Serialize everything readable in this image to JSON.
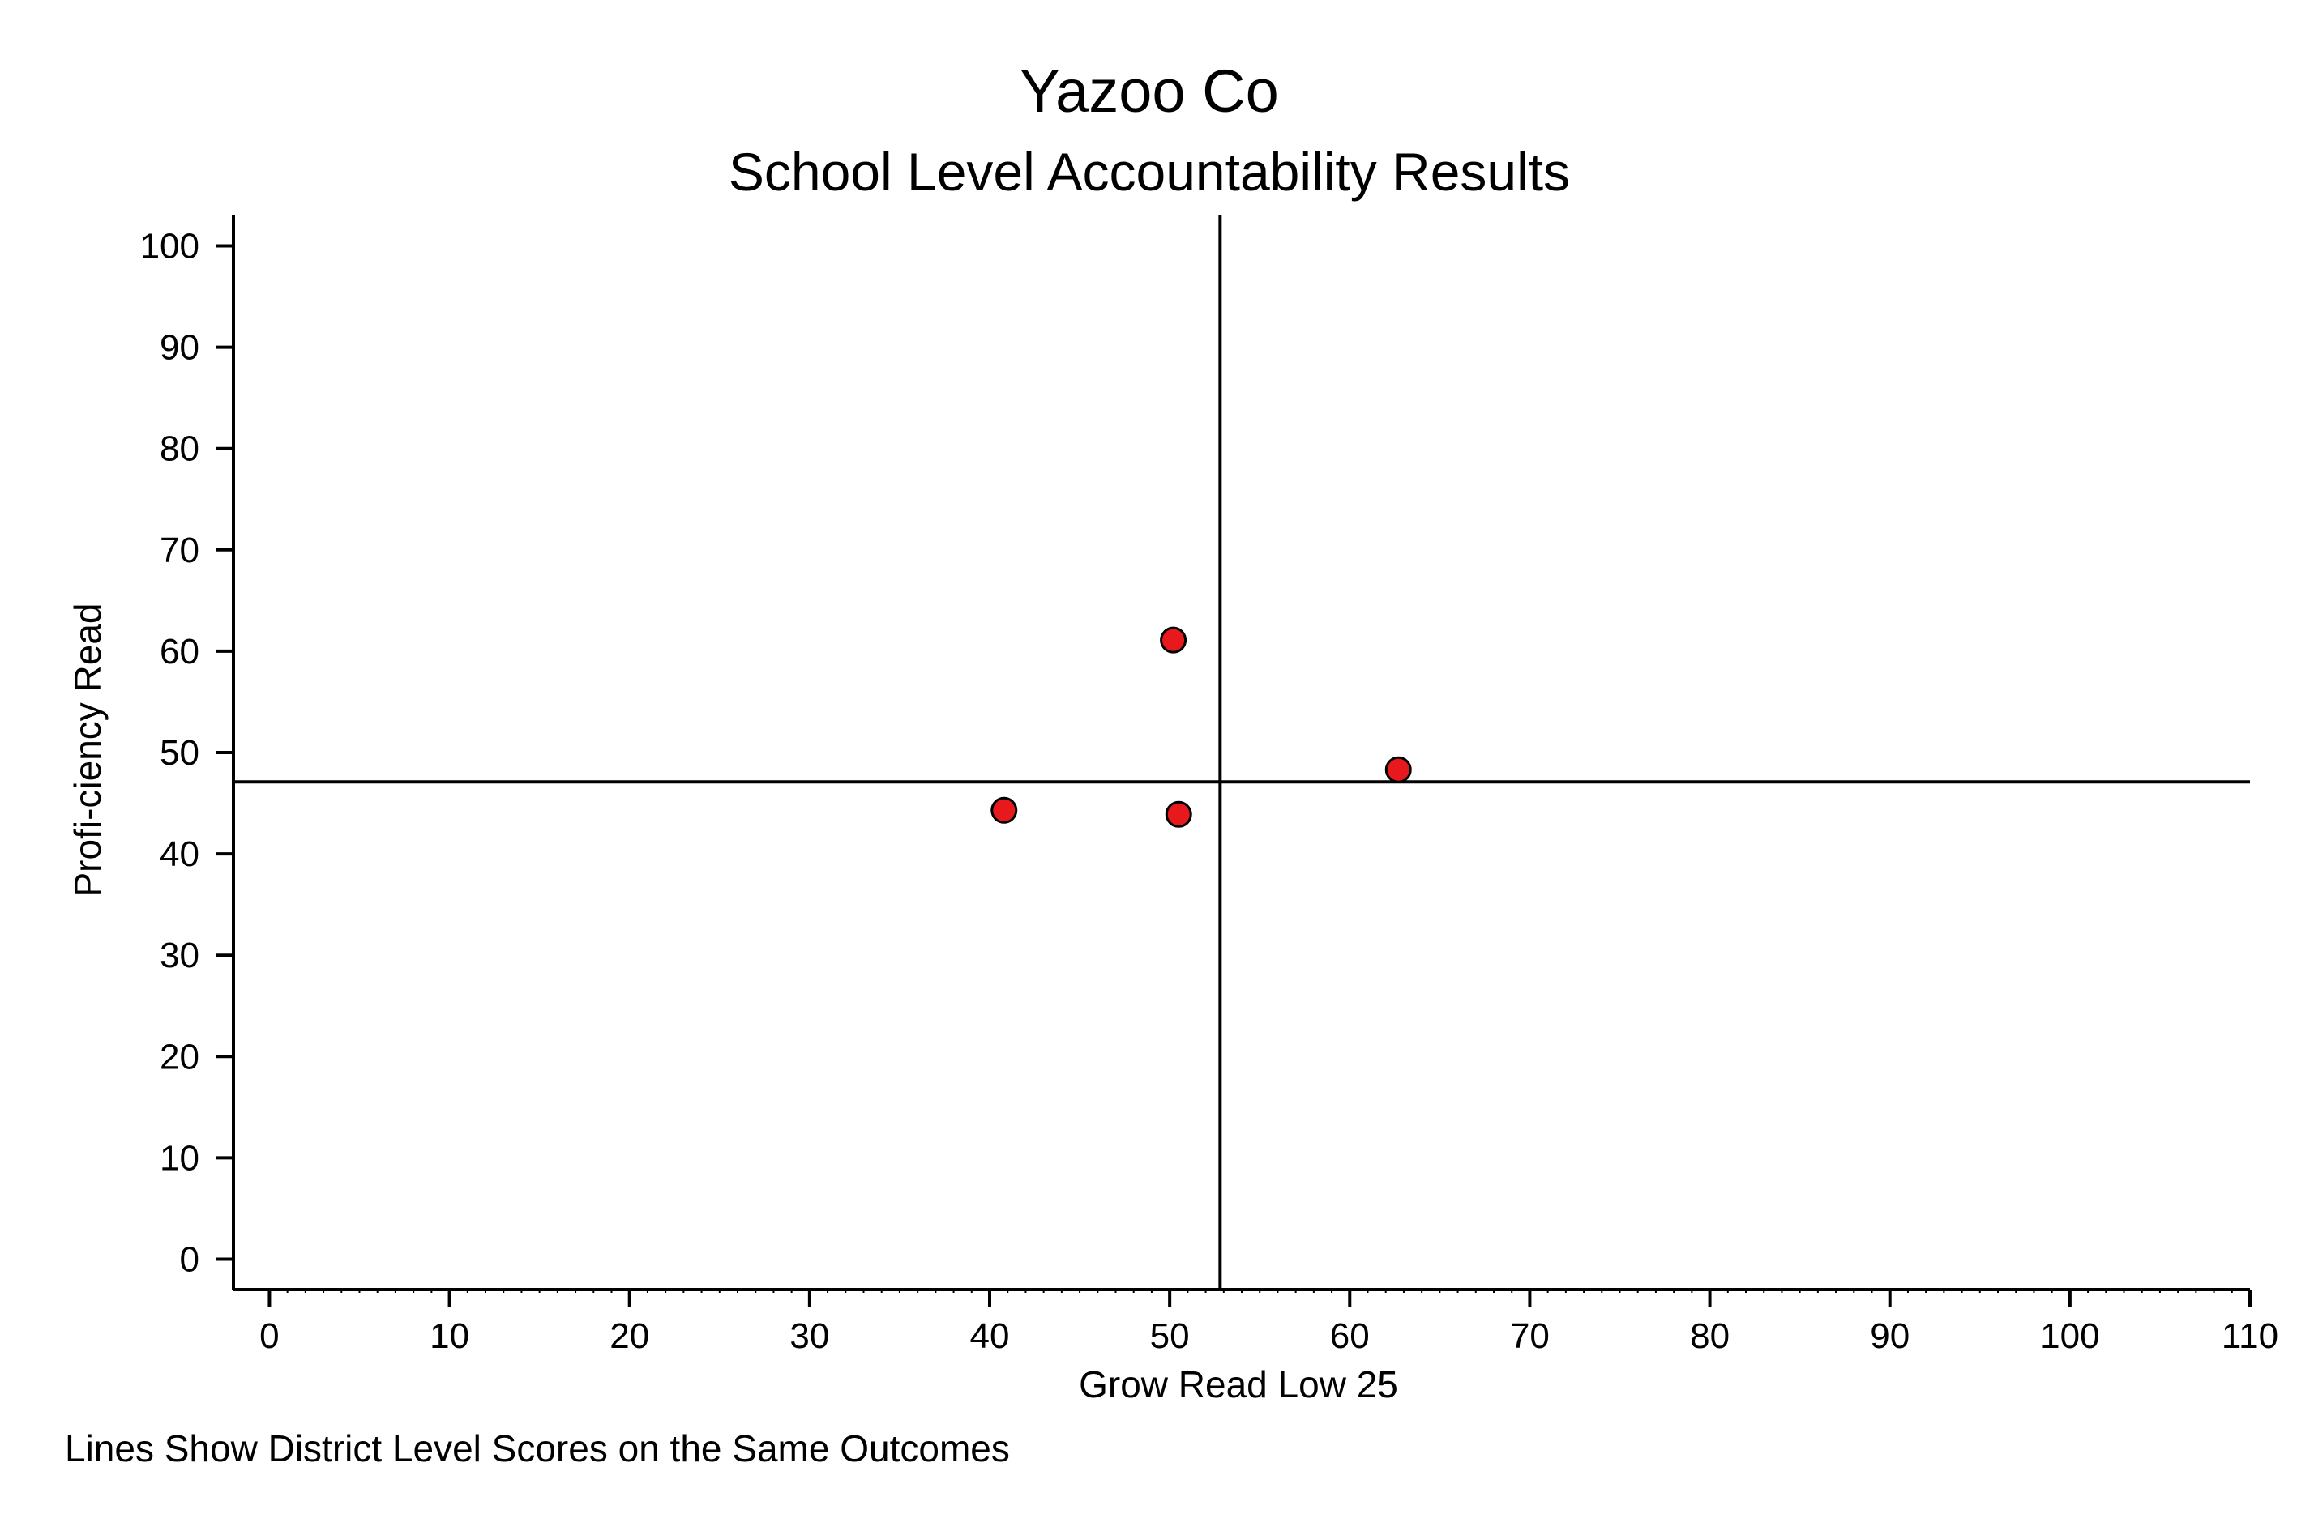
{
  "chart_data": {
    "type": "scatter",
    "title": "Yazoo Co",
    "subtitle": "School Level Accountability Results",
    "xlabel": "Grow Read Low 25",
    "ylabel": "Profi-ciency Read",
    "note": "Lines Show District Level Scores on the Same Outcomes",
    "xlim": [
      -2,
      110
    ],
    "ylim": [
      -3,
      103
    ],
    "xticks": [
      0,
      10,
      20,
      30,
      40,
      50,
      60,
      70,
      80,
      90,
      100,
      110
    ],
    "yticks": [
      0,
      10,
      20,
      30,
      40,
      50,
      60,
      70,
      80,
      90,
      100
    ],
    "grid": false,
    "legend": "none",
    "reference_lines": {
      "x": 52.8,
      "y": 47.1
    },
    "points": [
      {
        "x": 50.2,
        "y": 61.1
      },
      {
        "x": 62.7,
        "y": 48.3
      },
      {
        "x": 40.8,
        "y": 44.3
      },
      {
        "x": 50.5,
        "y": 43.9
      }
    ],
    "marker_color": "#e8191c",
    "marker_edge_color": "#000000",
    "line_color": "#000000"
  }
}
